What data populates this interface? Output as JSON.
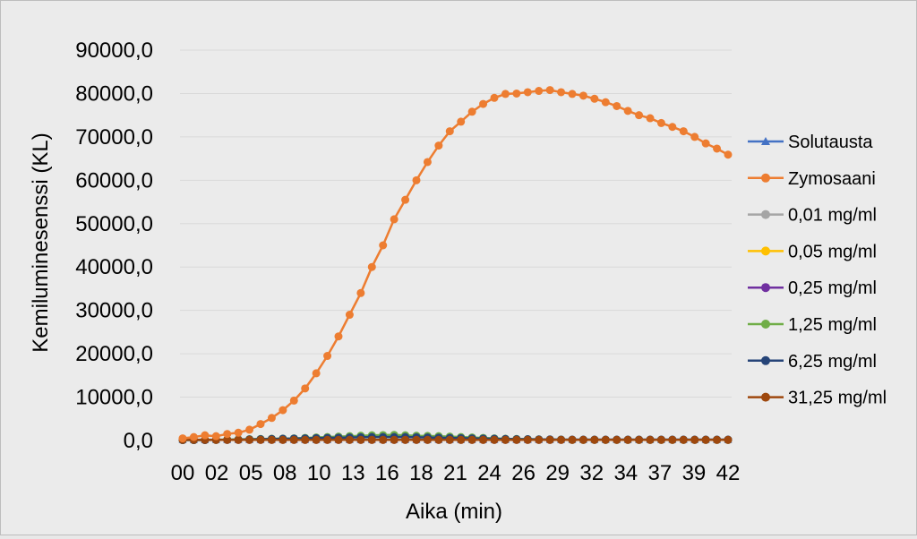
{
  "chart_data": {
    "type": "line",
    "title": "",
    "xlabel": "Aika (min)",
    "ylabel": "Kemiluminesenssi (KL)",
    "ylim": [
      0,
      90000
    ],
    "y_ticks": [
      "0,0",
      "10000,0",
      "20000,0",
      "30000,0",
      "40000,0",
      "50000,0",
      "60000,0",
      "70000,0",
      "80000,0",
      "90000,0"
    ],
    "x_tick_labels": [
      "00",
      "02",
      "05",
      "08",
      "10",
      "13",
      "16",
      "18",
      "21",
      "24",
      "26",
      "29",
      "32",
      "34",
      "37",
      "39",
      "42"
    ],
    "grid": true,
    "legend_position": "right",
    "series": [
      {
        "name": "Solutausta",
        "color": "#4472c4",
        "marker": "triangle",
        "values": [
          150,
          150,
          150,
          150,
          150,
          150,
          150,
          150,
          150,
          150,
          150,
          150,
          150,
          150,
          150,
          150,
          150,
          150,
          150,
          150,
          150,
          150,
          150,
          150,
          150,
          150,
          150,
          150,
          150,
          150,
          150,
          150,
          150,
          150,
          150,
          150,
          150,
          150,
          150,
          150,
          150,
          150,
          150,
          150,
          150,
          150,
          150,
          150,
          150,
          150
        ]
      },
      {
        "name": "Zymosaani",
        "color": "#ed7d31",
        "marker": "circle",
        "values": [
          500,
          800,
          1200,
          1000,
          1500,
          1800,
          2500,
          3800,
          5200,
          7000,
          9200,
          12000,
          15500,
          19500,
          24000,
          29000,
          34000,
          40000,
          45000,
          51000,
          55500,
          60000,
          64200,
          68000,
          71300,
          73500,
          75800,
          77600,
          79000,
          79900,
          80000,
          80300,
          80600,
          80800,
          80300,
          79900,
          79500,
          78800,
          78000,
          77100,
          76000,
          75000,
          74300,
          73200,
          72300,
          71300,
          70000,
          68500,
          67300,
          65900
        ]
      },
      {
        "name": "0,01 mg/ml",
        "color": "#a5a5a5",
        "marker": "circle",
        "values": [
          200,
          200,
          200,
          200,
          200,
          200,
          200,
          200,
          200,
          200,
          200,
          200,
          200,
          200,
          200,
          200,
          200,
          200,
          200,
          200,
          200,
          200,
          200,
          200,
          200,
          200,
          200,
          200,
          200,
          200,
          200,
          200,
          200,
          200,
          200,
          200,
          200,
          200,
          200,
          200,
          200,
          200,
          200,
          200,
          200,
          200,
          200,
          200,
          200,
          200
        ]
      },
      {
        "name": "0,05 mg/ml",
        "color": "#ffc000",
        "marker": "circle",
        "values": [
          150,
          150,
          150,
          150,
          150,
          150,
          150,
          150,
          150,
          150,
          150,
          150,
          150,
          150,
          150,
          150,
          150,
          150,
          150,
          150,
          150,
          150,
          150,
          150,
          150,
          150,
          150,
          150,
          150,
          150,
          150,
          150,
          150,
          150,
          150,
          150,
          150,
          150,
          150,
          150,
          150,
          150,
          150,
          150,
          150,
          150,
          150,
          150,
          150,
          150
        ]
      },
      {
        "name": "0,25 mg/ml",
        "color": "#7030a0",
        "marker": "circle",
        "values": [
          150,
          150,
          150,
          150,
          150,
          150,
          150,
          150,
          150,
          150,
          150,
          150,
          150,
          150,
          150,
          150,
          150,
          150,
          150,
          150,
          150,
          150,
          150,
          150,
          150,
          150,
          150,
          150,
          150,
          150,
          150,
          150,
          150,
          150,
          150,
          150,
          150,
          150,
          150,
          150,
          150,
          150,
          150,
          150,
          150,
          150,
          150,
          150,
          150,
          150
        ]
      },
      {
        "name": "1,25 mg/ml",
        "color": "#70ad47",
        "marker": "circle",
        "values": [
          100,
          100,
          150,
          150,
          200,
          250,
          300,
          350,
          400,
          450,
          500,
          600,
          700,
          800,
          900,
          1000,
          1100,
          1200,
          1250,
          1300,
          1200,
          1100,
          1050,
          1000,
          900,
          800,
          700,
          600,
          500,
          400,
          350,
          300,
          250,
          200,
          200,
          150,
          150,
          150,
          150,
          150,
          150,
          150,
          150,
          150,
          150,
          150,
          150,
          150,
          150,
          150
        ]
      },
      {
        "name": "6,25 mg/ml",
        "color": "#264478",
        "marker": "circle",
        "values": [
          100,
          100,
          100,
          150,
          150,
          200,
          250,
          300,
          350,
          400,
          450,
          500,
          550,
          600,
          650,
          700,
          750,
          800,
          800,
          800,
          800,
          750,
          700,
          650,
          600,
          550,
          500,
          450,
          400,
          350,
          300,
          300,
          250,
          250,
          200,
          200,
          200,
          200,
          200,
          200,
          200,
          200,
          200,
          200,
          200,
          200,
          200,
          200,
          200,
          200
        ]
      },
      {
        "name": "31,25 mg/ml",
        "color": "#9e480e",
        "marker": "circle",
        "values": [
          150,
          150,
          150,
          150,
          150,
          150,
          150,
          150,
          150,
          150,
          150,
          150,
          150,
          150,
          150,
          150,
          150,
          150,
          150,
          150,
          150,
          150,
          150,
          150,
          150,
          150,
          150,
          150,
          150,
          150,
          150,
          150,
          150,
          150,
          150,
          150,
          150,
          150,
          150,
          150,
          150,
          150,
          150,
          150,
          150,
          150,
          150,
          150,
          150,
          150
        ]
      }
    ]
  }
}
